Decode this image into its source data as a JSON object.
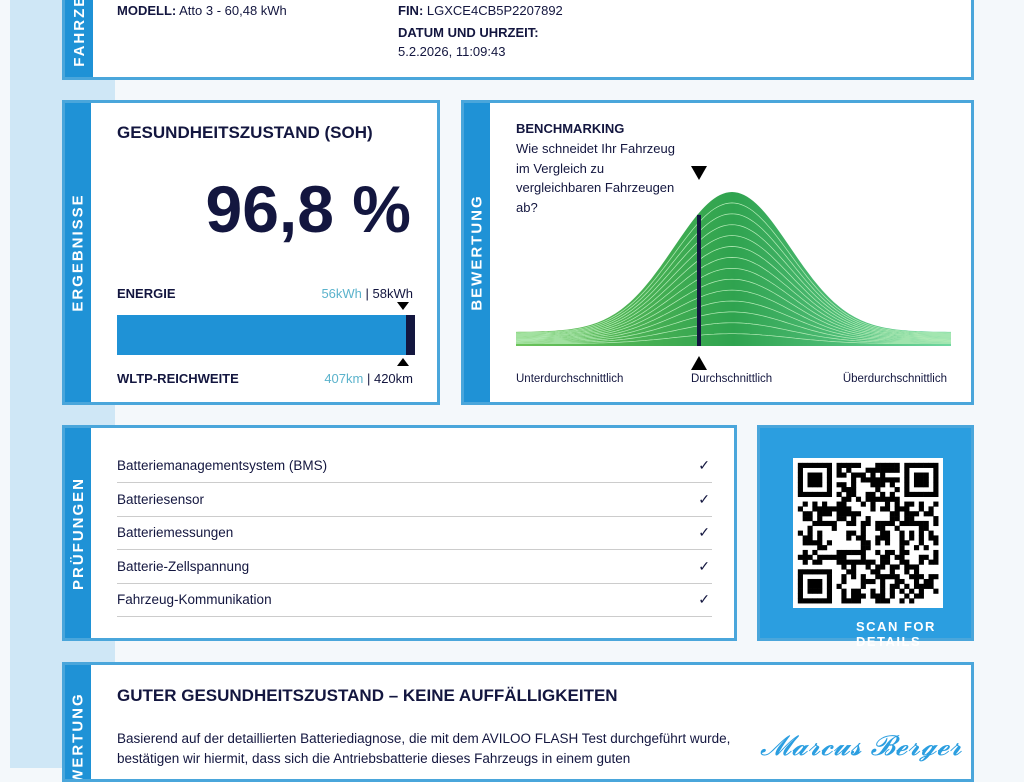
{
  "vehicle": {
    "section": "FAHRZEUG",
    "model_label": "MODELL:",
    "model": "Atto 3 - 60,48 kWh",
    "vin_label": "FIN:",
    "vin": "LGXCE4CB5P2207892",
    "date_label": "DATUM UND UHRZEIT:",
    "date": "5.2.2026, 11:09:43"
  },
  "results": {
    "section": "ERGEBNISSE",
    "title": "GESUNDHEITSZUSTAND (SOH)",
    "soh": "96,8 %",
    "soh_percent": 96.8,
    "energy_label": "ENERGIE",
    "energy_current": "56kWh",
    "energy_nominal": "| 58kWh",
    "range_label": "WLTP-REICHWEITE",
    "range_current": "407km",
    "range_nominal": "| 420km"
  },
  "rating": {
    "section": "BEWERTUNG",
    "title": "BENCHMARKING",
    "question": "Wie schneidet Ihr Fahrzeug im Vergleich zu vergleichbaren Fahrzeugen ab?",
    "labels": [
      "Unterdurchschnittlich",
      "Durchschnittlich",
      "Überdurchschnittlich"
    ],
    "position": "Durchschnittlich",
    "curve_color": "#3fb45a"
  },
  "checks": {
    "section": "PRÜFUNGEN",
    "items": [
      "Batteriemanagementsystem (BMS)",
      "Batteriesensor",
      "Batteriemessungen",
      "Batterie-Zellspannung",
      "Fahrzeug-Kommunikation"
    ],
    "check_icon": "checkmark"
  },
  "qr": {
    "caption": "SCAN FOR DETAILS"
  },
  "assessment": {
    "section": "BEWERTUNG",
    "title": "GUTER GESUNDHEITSZUSTAND – KEINE AUFFÄLLIGKEITEN",
    "text": "Basierend auf der detaillierten Batteriediagnose, die mit dem AVILOO FLASH Test durchgeführt wurde, bestätigen wir hiermit, dass sich die Antriebsbatterie dieses Fahrzeugs in einem guten",
    "signature": "Marcus Berger"
  },
  "colors": {
    "accent": "#1f92d6",
    "navy": "#13163f",
    "teal": "#5bb3cc"
  }
}
